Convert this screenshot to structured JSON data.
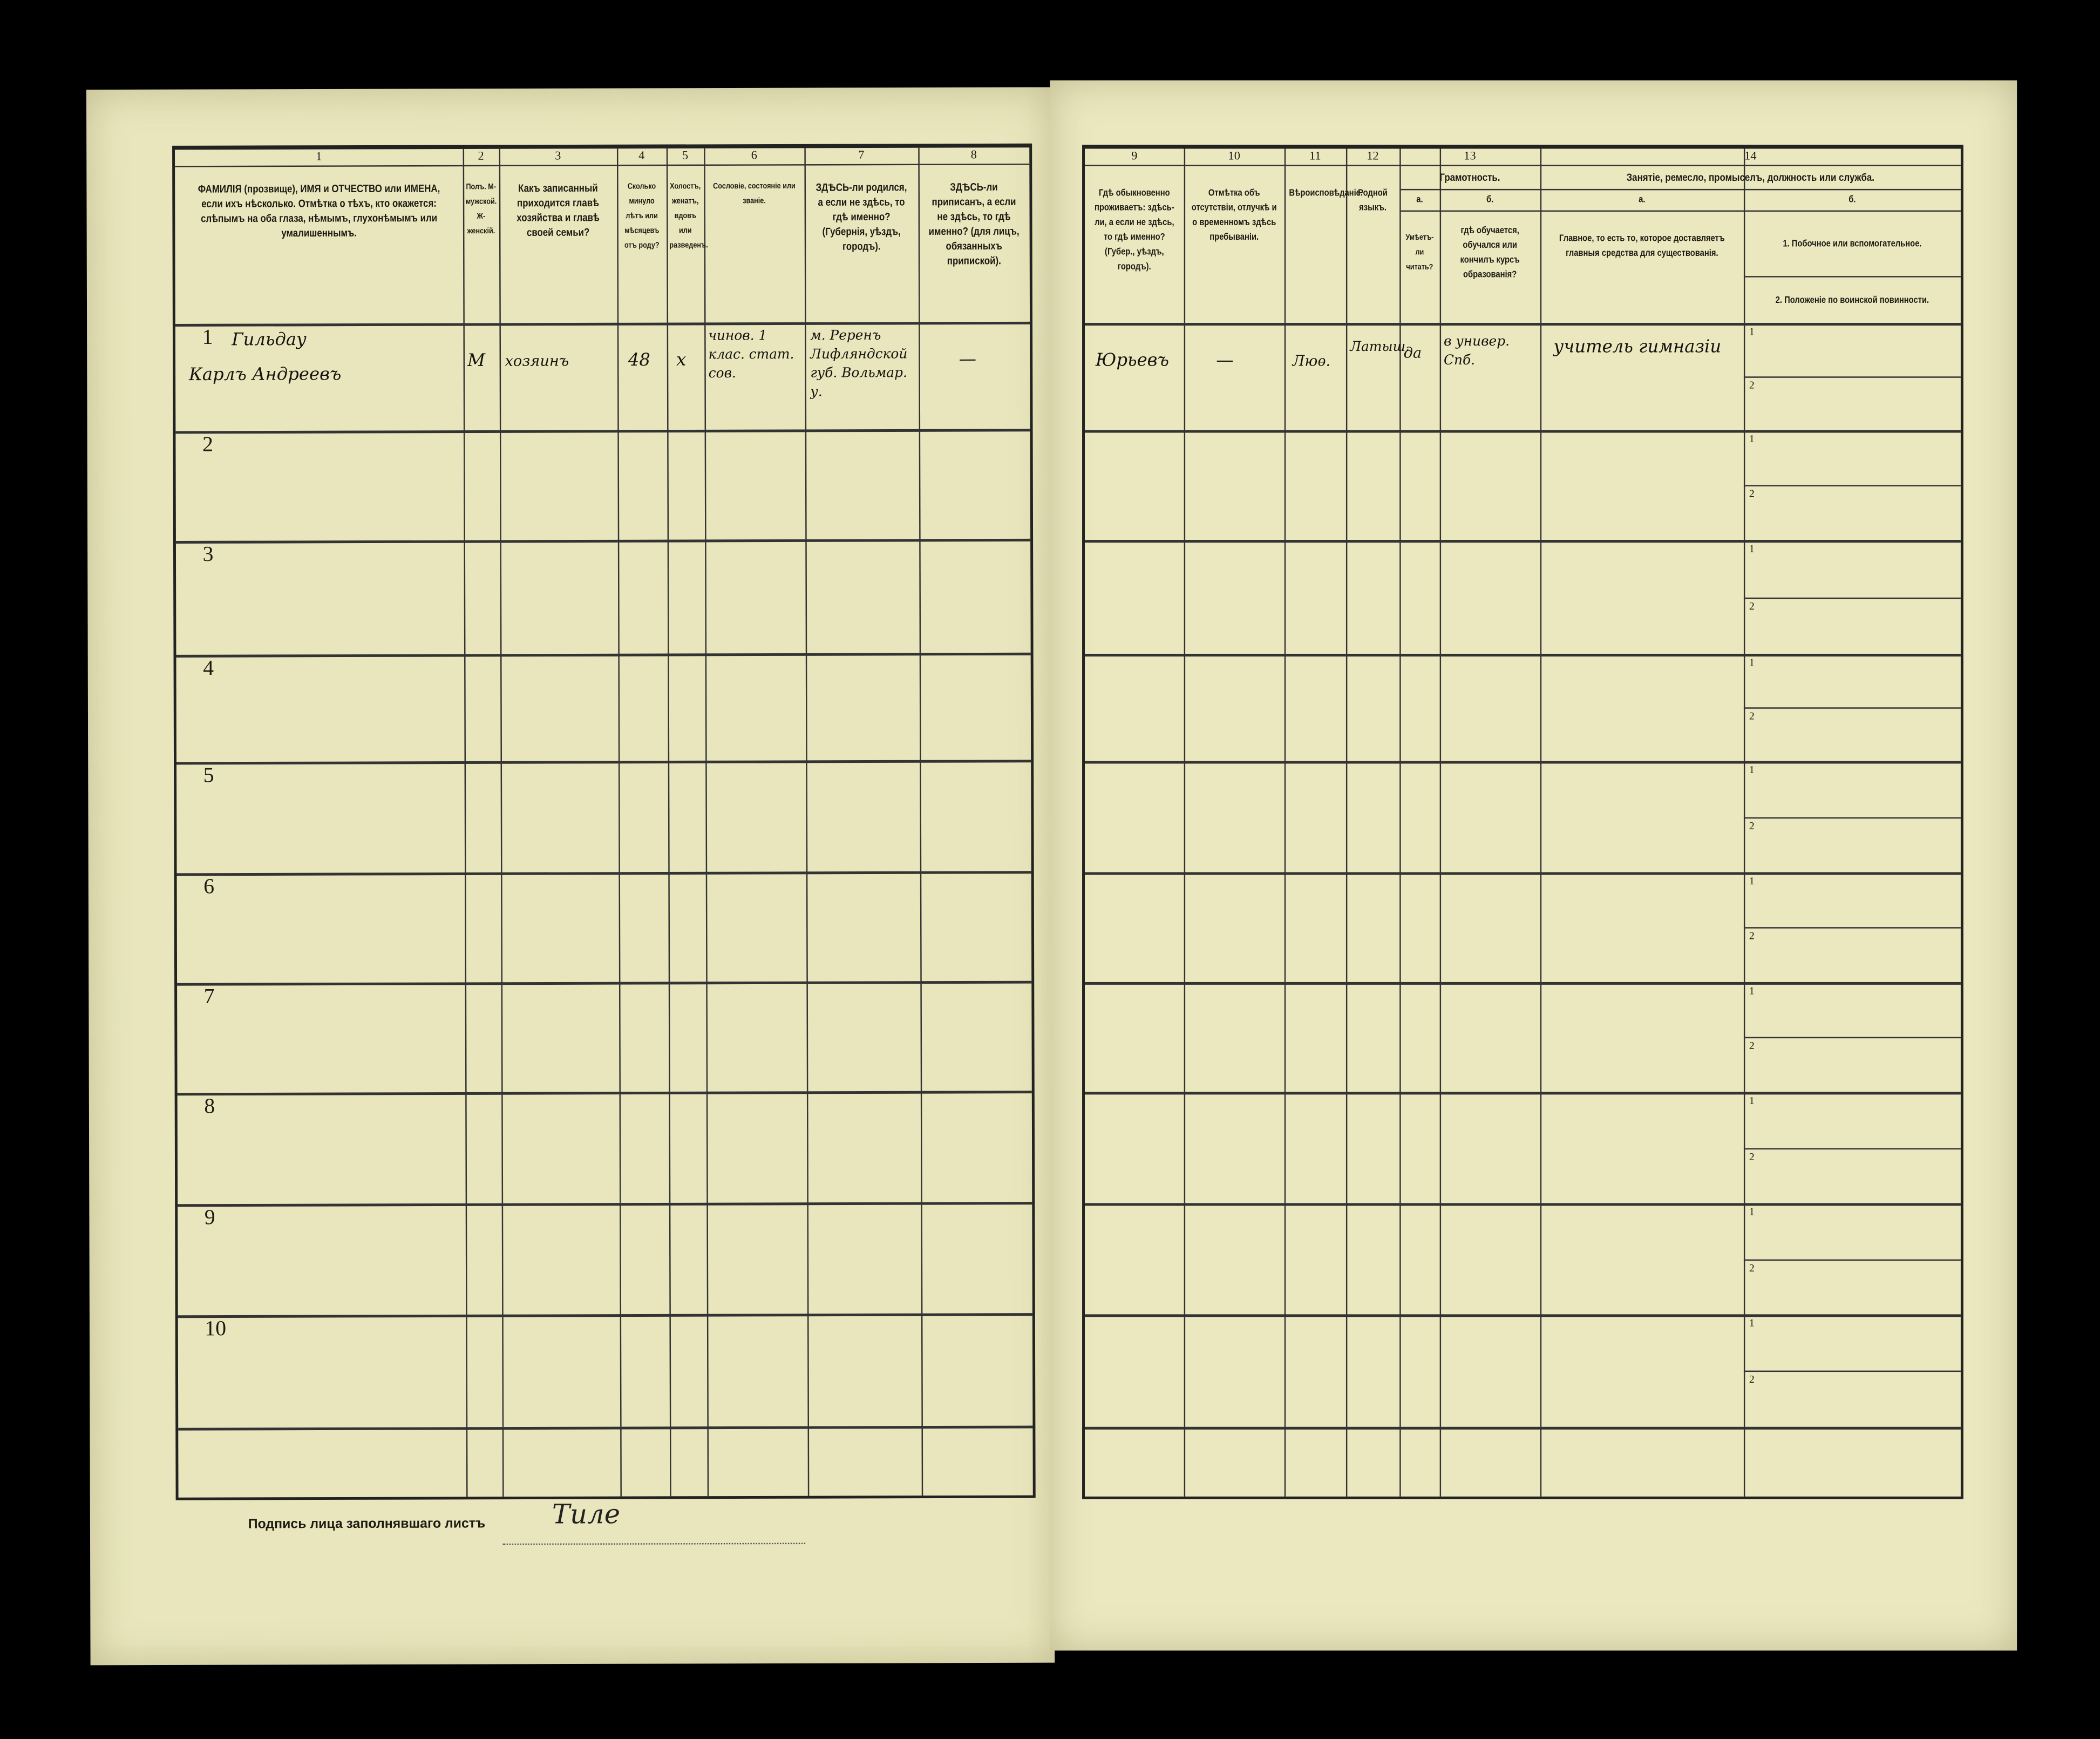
{
  "form": {
    "left_columns": [
      {
        "num": "1",
        "header": "ФАМИЛІЯ (прозвище), ИМЯ и ОТЧЕСТВО или ИМЕНА, если ихъ нѣсколько. Отмѣтка о тѣхъ, кто окажется: слѣпымъ на оба глаза, нѣмымъ, глухонѣмымъ или умалишеннымъ."
      },
      {
        "num": "2",
        "header": "Полъ. М-мужской. Ж-женскій."
      },
      {
        "num": "3",
        "header": "Какъ записанный приходится главѣ хозяйства и главѣ своей семьи?"
      },
      {
        "num": "4",
        "header": "Сколько минуло лѣтъ или мѣсяцевъ отъ роду?"
      },
      {
        "num": "5",
        "header": "Холостъ, женатъ, вдовъ или разведенъ."
      },
      {
        "num": "6",
        "header": "Сословіе, состояніе или званіе."
      },
      {
        "num": "7",
        "header": "ЗДѢСЬ-ли родился, а если не здѣсь, то гдѣ именно? (Губернія, уѣздъ, городъ)."
      },
      {
        "num": "8",
        "header": "ЗДѢСЬ-ли приписанъ, а если не здѣсь, то гдѣ именно? (для лицъ, обязанныхъ припиской)."
      }
    ],
    "right_columns": [
      {
        "num": "9",
        "header": "Гдѣ обыкновенно проживаетъ: здѣсь-ли, а если не здѣсь, то гдѣ именно? (Губер., уѣздъ, городъ)."
      },
      {
        "num": "10",
        "header": "Отмѣтка объ отсутствіи, отлучкѣ и о временномъ здѣсь пребываніи."
      },
      {
        "num": "11",
        "header": "Вѣроисповѣданіе."
      },
      {
        "num": "12",
        "header": "Родной языкъ."
      }
    ],
    "literacy": {
      "num": "13",
      "title": "Грамотность.",
      "a_label": "а.",
      "a_header": "Умѣетъ-ли читать?",
      "b_label": "б.",
      "b_header": "гдѣ обучается, обучался или кончилъ курсъ образованія?"
    },
    "occupation": {
      "num": "14",
      "title": "Занятіе, ремесло, промыселъ, должность или служба.",
      "a_label": "а.",
      "a_header": "Главное, то есть то, которое доставляетъ главныя средства для существованія.",
      "b_label": "б.",
      "b1": "1. Побочное или вспомогательное.",
      "b2": "2. Положеніе по воинской повинности."
    },
    "row_numbers": [
      "1",
      "2",
      "3",
      "4",
      "5",
      "6",
      "7",
      "8",
      "9",
      "10"
    ],
    "sub_numbers": [
      "1",
      "2"
    ],
    "entry": {
      "surname": "Гильдау",
      "name": "Карлъ Андреевъ",
      "sex": "М",
      "relation": "хозяинъ",
      "age": "48",
      "marital": "х",
      "estate": "чинов. 1 клас. стат. сов.",
      "birthplace": "м. Реренъ Лифляндской губ. Вольмар. у.",
      "registered": "—",
      "residence": "Юрьевъ",
      "absence": "—",
      "religion": "Люѳ.",
      "language": "Латыш.",
      "can_read": "да",
      "education": "в универ. Спб.",
      "occupation": "учитель гимназіи"
    },
    "signature_label": "Подпись лица заполнявшаго листъ",
    "signature": "Тиле"
  }
}
